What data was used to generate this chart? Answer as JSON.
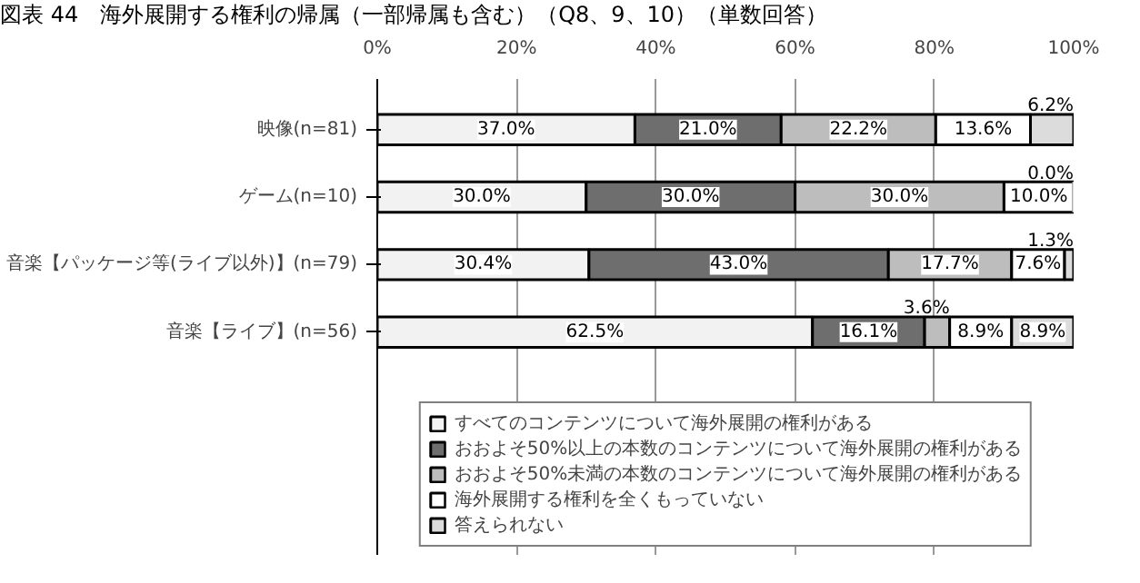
{
  "chart_data": {
    "type": "bar",
    "orientation": "horizontal",
    "stacked": true,
    "title": "図表 44　海外展開する権利の帰属（一部帰属も含む）（Q8、9、10）（単数回答）",
    "categories": [
      "映像(n=81)",
      "ゲーム(n=10)",
      "音楽【パッケージ等(ライブ以外)】(n=79)",
      "音楽【ライブ】(n=56)"
    ],
    "series": [
      {
        "name": "すべてのコンテンツについて海外展開の権利がある",
        "color": "#f2f2f2",
        "values": [
          37.0,
          30.0,
          30.4,
          62.5
        ],
        "value_labels": [
          "37.0%",
          "30.0%",
          "30.4%",
          "62.5%"
        ]
      },
      {
        "name": "おおよそ50%以上の本数のコンテンツについて海外展開の権利がある",
        "color": "#6e6e6e",
        "values": [
          21.0,
          30.0,
          43.0,
          16.1
        ],
        "value_labels": [
          "21.0%",
          "30.0%",
          "43.0%",
          "16.1%"
        ]
      },
      {
        "name": "おおよそ50%未満の本数のコンテンツについて海外展開の権利がある",
        "color": "#bdbdbd",
        "values": [
          22.2,
          30.0,
          17.7,
          3.6
        ],
        "value_labels": [
          "22.2%",
          "30.0%",
          "17.7%",
          "3.6%"
        ]
      },
      {
        "name": "海外展開する権利を全くもっていない",
        "color": "#ffffff",
        "values": [
          13.6,
          10.0,
          7.6,
          8.9
        ],
        "value_labels": [
          "13.6%",
          "10.0%",
          "7.6%",
          "8.9%"
        ]
      },
      {
        "name": "答えられない",
        "color": "#dcdcdc",
        "values": [
          6.2,
          0.0,
          1.3,
          8.9
        ],
        "value_labels": [
          "6.2%",
          "0.0%",
          "1.3%",
          "8.9%"
        ]
      }
    ],
    "xlim": [
      0,
      100
    ],
    "xticks": [
      {
        "value": 0,
        "label": "0%"
      },
      {
        "value": 20,
        "label": "20%"
      },
      {
        "value": 40,
        "label": "40%"
      },
      {
        "value": 60,
        "label": "60%"
      },
      {
        "value": 80,
        "label": "80%"
      },
      {
        "value": 100,
        "label": "100%"
      }
    ],
    "grid": "x",
    "legend": "bottom"
  }
}
